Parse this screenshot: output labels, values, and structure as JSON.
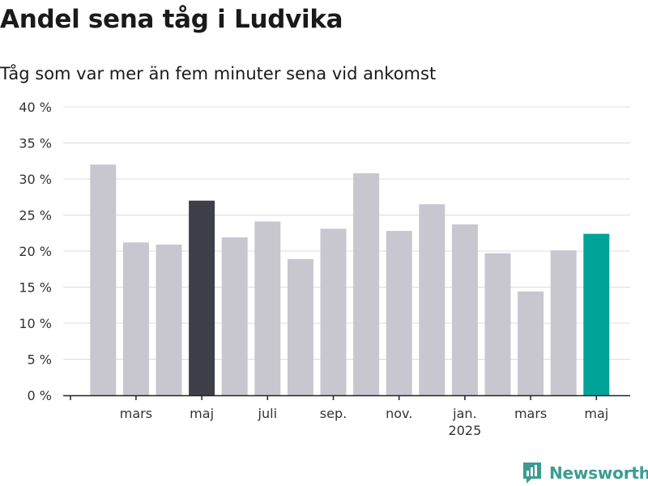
{
  "chart_data": {
    "type": "bar",
    "title": "Andel sena tåg i Ludvika",
    "subtitle": "Tåg som var mer än fem minuter sena vid ankomst",
    "values": [
      32,
      21.2,
      20.9,
      27,
      21.9,
      24.1,
      18.9,
      23.1,
      30.8,
      22.8,
      26.5,
      23.7,
      19.7,
      14.4,
      20.1,
      22.4
    ],
    "highlight": [
      {
        "index": 3,
        "color": "#3f3f4a"
      },
      {
        "index": 15,
        "color": "#00a398"
      }
    ],
    "bar_color": "#c8c7cf",
    "ylim": [
      0,
      40
    ],
    "y_ticks": [
      {
        "value": 0,
        "label": "0 %"
      },
      {
        "value": 5,
        "label": "5 %"
      },
      {
        "value": 10,
        "label": "10 %"
      },
      {
        "value": 15,
        "label": "15 %"
      },
      {
        "value": 20,
        "label": "20 %"
      },
      {
        "value": 25,
        "label": "25 %"
      },
      {
        "value": 30,
        "label": "30 %"
      },
      {
        "value": 35,
        "label": "35 %"
      },
      {
        "value": 40,
        "label": "40 %"
      }
    ],
    "x_ticks": [
      {
        "index": 1,
        "label": "mars"
      },
      {
        "index": 3,
        "label": "maj"
      },
      {
        "index": 5,
        "label": "juli"
      },
      {
        "index": 7,
        "label": "sep."
      },
      {
        "index": 9,
        "label": "nov."
      },
      {
        "index": 11,
        "label": "jan.",
        "sublabel": "2025"
      },
      {
        "index": 13,
        "label": "mars"
      },
      {
        "index": 15,
        "label": "maj"
      }
    ],
    "grid": true
  },
  "brand": {
    "name": "Newsworthy",
    "icon": "newsworthy-logo-icon",
    "color": "#3b9c93"
  }
}
